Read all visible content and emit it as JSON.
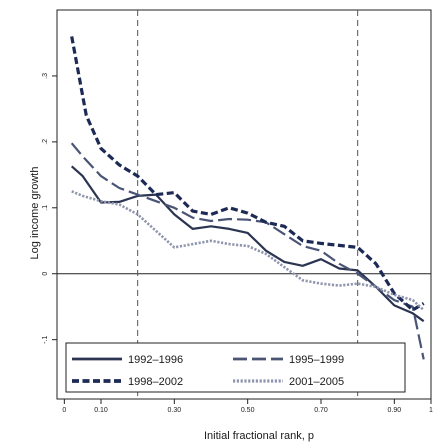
{
  "chart_data": {
    "type": "line",
    "title": "",
    "xlabel": "Initial fractional rank, p",
    "ylabel": "Log income growth",
    "xlim": [
      -0.02,
      1.0
    ],
    "ylim": [
      -0.19,
      0.4
    ],
    "x_ticks": [
      0,
      0.1,
      0.3,
      0.5,
      0.7,
      0.9,
      1
    ],
    "x_tick_labels": [
      "0",
      "0.10",
      "0.30",
      "0.50",
      "0.70",
      "0.90",
      "1"
    ],
    "y_ticks": [
      -0.1,
      0,
      0.1,
      0.2,
      0.3
    ],
    "y_tick_labels": [
      "-.1",
      "0",
      ".1",
      ".2",
      ".3"
    ],
    "reference_lines": {
      "horizontal": [
        0
      ],
      "vertical_dashed": [
        0.2,
        0.8
      ]
    },
    "grid": false,
    "legend_position": "bottom",
    "series": [
      {
        "name": "1992–1996",
        "color": "#2b3450",
        "dash": "solid",
        "x": [
          0.02,
          0.05,
          0.1,
          0.15,
          0.2,
          0.25,
          0.3,
          0.35,
          0.4,
          0.45,
          0.5,
          0.55,
          0.6,
          0.65,
          0.7,
          0.75,
          0.8,
          0.85,
          0.9,
          0.95,
          0.98
        ],
        "values": [
          0.163,
          0.148,
          0.108,
          0.109,
          0.118,
          0.12,
          0.09,
          0.068,
          0.072,
          0.068,
          0.062,
          0.035,
          0.018,
          0.012,
          0.022,
          0.008,
          0.005,
          -0.02,
          -0.048,
          -0.06,
          -0.072
        ]
      },
      {
        "name": "1995–1999",
        "color": "#4a5576",
        "dash": "long",
        "x": [
          0.02,
          0.05,
          0.1,
          0.15,
          0.2,
          0.25,
          0.3,
          0.35,
          0.4,
          0.45,
          0.5,
          0.55,
          0.6,
          0.65,
          0.7,
          0.75,
          0.8,
          0.85,
          0.9,
          0.95,
          0.98
        ],
        "values": [
          0.198,
          0.178,
          0.148,
          0.13,
          0.12,
          0.11,
          0.1,
          0.085,
          0.08,
          0.083,
          0.082,
          0.078,
          0.06,
          0.042,
          0.035,
          0.015,
          0.0,
          -0.02,
          -0.04,
          -0.05,
          -0.13
        ]
      },
      {
        "name": "1998–2002",
        "color": "#1c2a55",
        "dash": "heavy",
        "x": [
          0.02,
          0.04,
          0.06,
          0.1,
          0.15,
          0.2,
          0.25,
          0.3,
          0.35,
          0.4,
          0.45,
          0.5,
          0.55,
          0.6,
          0.65,
          0.7,
          0.75,
          0.8,
          0.85,
          0.9,
          0.95,
          0.98
        ],
        "values": [
          0.36,
          0.3,
          0.24,
          0.19,
          0.165,
          0.148,
          0.12,
          0.123,
          0.095,
          0.09,
          0.1,
          0.092,
          0.078,
          0.072,
          0.05,
          0.046,
          0.043,
          0.04,
          0.015,
          -0.03,
          -0.055,
          -0.045
        ]
      },
      {
        "name": "2001–2005",
        "color": "#8e95ad",
        "dash": "dotted",
        "x": [
          0.02,
          0.05,
          0.1,
          0.15,
          0.2,
          0.25,
          0.3,
          0.35,
          0.4,
          0.45,
          0.5,
          0.55,
          0.6,
          0.65,
          0.7,
          0.75,
          0.8,
          0.85,
          0.9,
          0.95,
          0.98
        ],
        "values": [
          0.125,
          0.118,
          0.11,
          0.105,
          0.09,
          0.065,
          0.04,
          0.045,
          0.05,
          0.045,
          0.042,
          0.03,
          0.01,
          -0.01,
          -0.015,
          -0.018,
          -0.015,
          -0.02,
          -0.032,
          -0.04,
          -0.055
        ]
      }
    ]
  }
}
